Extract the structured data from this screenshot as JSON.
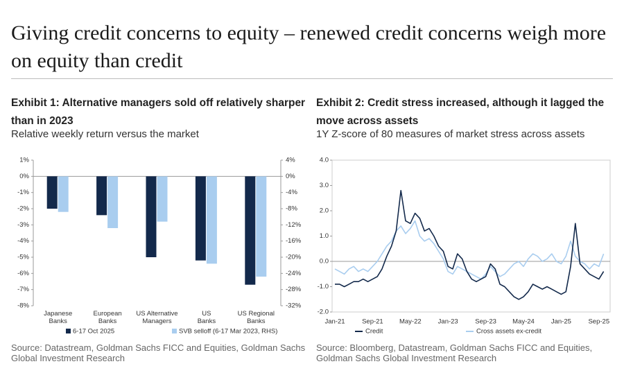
{
  "title": "Giving credit concerns to equity – renewed credit concerns weigh more on equity than credit",
  "chart_data": [
    {
      "type": "bar",
      "title": "Exhibit 1: Alternative managers sold off relatively sharper than in 2023",
      "subtitle": "Relative weekly return versus the market",
      "source": "Source: Datastream, Goldman Sachs FICC and Equities, Goldman Sachs Global Investment Research",
      "categories": [
        "Japanese Banks",
        "European Banks",
        "US Alternative Managers",
        "US Banks",
        "US Regional Banks"
      ],
      "series": [
        {
          "name": "6-17 Oct 2025",
          "color": "#13294b",
          "values": [
            -2.0,
            -2.4,
            -5.0,
            -5.2,
            -6.7
          ]
        },
        {
          "name": "SVB selloff (6-17 Mar 2023, RHS)",
          "color": "#a9cdef",
          "axis": "y2",
          "values": [
            -8.8,
            -12.8,
            -11.2,
            -21.6,
            -24.8
          ]
        }
      ],
      "ylim": [
        -8,
        1
      ],
      "yticks": [
        {
          "value": 1,
          "label": "1%"
        },
        {
          "value": 0,
          "label": "0%"
        },
        {
          "value": -1,
          "label": "-1%"
        },
        {
          "value": -2,
          "label": "-2%"
        },
        {
          "value": -3,
          "label": "-3%"
        },
        {
          "value": -4,
          "label": "-4%"
        },
        {
          "value": -5,
          "label": "-5%"
        },
        {
          "value": -6,
          "label": "-6%"
        },
        {
          "value": -7,
          "label": "-7%"
        },
        {
          "value": -8,
          "label": "-8%"
        }
      ],
      "y2lim": [
        -32,
        4
      ],
      "y2ticks": [
        {
          "value": 4,
          "label": "4%"
        },
        {
          "value": 0,
          "label": "0%"
        },
        {
          "value": -4,
          "label": "-4%"
        },
        {
          "value": -8,
          "label": "-8%"
        },
        {
          "value": -12,
          "label": "-12%"
        },
        {
          "value": -16,
          "label": "-16%"
        },
        {
          "value": -20,
          "label": "-20%"
        },
        {
          "value": -24,
          "label": "-24%"
        },
        {
          "value": -28,
          "label": "-28%"
        },
        {
          "value": -32,
          "label": "-32%"
        }
      ]
    },
    {
      "type": "line",
      "title": "Exhibit 2: Credit stress increased, although it lagged the move across assets",
      "subtitle": "1Y Z-score of 80 measures of market stress across assets",
      "source": "Source: Bloomberg, Datastream, Goldman Sachs FICC and Equities, Goldman Sachs Global Investment Research",
      "x": [
        "Jan-21",
        "Feb-21",
        "Mar-21",
        "Apr-21",
        "May-21",
        "Jun-21",
        "Jul-21",
        "Aug-21",
        "Sep-21",
        "Oct-21",
        "Nov-21",
        "Dec-21",
        "Jan-22",
        "Feb-22",
        "Mar-22",
        "Apr-22",
        "May-22",
        "Jun-22",
        "Jul-22",
        "Aug-22",
        "Sep-22",
        "Oct-22",
        "Nov-22",
        "Dec-22",
        "Jan-23",
        "Feb-23",
        "Mar-23",
        "Apr-23",
        "May-23",
        "Jun-23",
        "Jul-23",
        "Aug-23",
        "Sep-23",
        "Oct-23",
        "Nov-23",
        "Dec-23",
        "Jan-24",
        "Feb-24",
        "Mar-24",
        "Apr-24",
        "May-24",
        "Jun-24",
        "Jul-24",
        "Aug-24",
        "Sep-24",
        "Oct-24",
        "Nov-24",
        "Dec-24",
        "Jan-25",
        "Feb-25",
        "Mar-25",
        "Apr-25",
        "May-25",
        "Jun-25",
        "Jul-25",
        "Aug-25",
        "Sep-25",
        "Oct-25"
      ],
      "xticks": [
        "Jan-21",
        "Sep-21",
        "May-22",
        "Jan-23",
        "Sep-23",
        "May-24",
        "Jan-25",
        "Sep-25"
      ],
      "series": [
        {
          "name": "Credit",
          "color": "#13294b",
          "values": [
            -0.9,
            -0.9,
            -1.0,
            -0.9,
            -0.8,
            -0.8,
            -0.7,
            -0.8,
            -0.7,
            -0.6,
            -0.3,
            0.2,
            0.6,
            1.2,
            2.8,
            1.6,
            1.5,
            1.9,
            1.7,
            1.2,
            1.3,
            1.0,
            0.6,
            0.4,
            -0.2,
            -0.3,
            0.3,
            0.1,
            -0.4,
            -0.7,
            -0.8,
            -0.7,
            -0.6,
            -0.1,
            -0.3,
            -0.9,
            -1.0,
            -1.2,
            -1.4,
            -1.5,
            -1.4,
            -1.2,
            -0.9,
            -1.0,
            -1.1,
            -1.0,
            -1.1,
            -1.2,
            -1.3,
            -1.2,
            -0.2,
            1.5,
            -0.1,
            -0.3,
            -0.5,
            -0.6,
            -0.7,
            -0.4
          ]
        },
        {
          "name": "Cross assets ex-credit",
          "color": "#a9cdef",
          "values": [
            -0.3,
            -0.4,
            -0.5,
            -0.3,
            -0.2,
            -0.4,
            -0.3,
            -0.4,
            -0.2,
            0.0,
            0.3,
            0.6,
            0.8,
            1.2,
            1.4,
            1.1,
            1.3,
            1.6,
            1.0,
            0.8,
            0.9,
            0.7,
            0.4,
            0.1,
            -0.4,
            -0.5,
            -0.2,
            -0.3,
            -0.4,
            -0.5,
            -0.6,
            -0.7,
            -0.5,
            -0.2,
            -0.4,
            -0.6,
            -0.5,
            -0.3,
            -0.1,
            0.0,
            -0.2,
            0.1,
            0.3,
            0.2,
            0.0,
            0.1,
            0.3,
            0.0,
            -0.1,
            0.2,
            0.8,
            0.2,
            0.0,
            -0.1,
            -0.3,
            -0.1,
            -0.2,
            0.3
          ]
        }
      ],
      "ylim": [
        -2,
        4
      ],
      "yticks": [
        {
          "value": 4,
          "label": "4.0"
        },
        {
          "value": 3,
          "label": "3.0"
        },
        {
          "value": 2,
          "label": "2.0"
        },
        {
          "value": 1,
          "label": "1.0"
        },
        {
          "value": 0,
          "label": "0.0"
        },
        {
          "value": -1,
          "label": "-1.0"
        },
        {
          "value": -2,
          "label": "-2.0"
        }
      ]
    }
  ]
}
